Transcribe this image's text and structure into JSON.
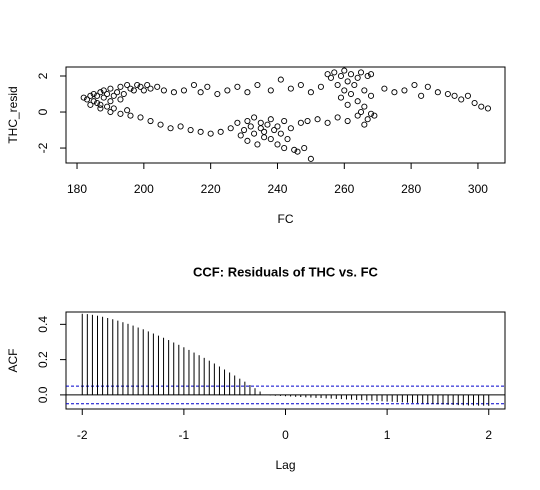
{
  "chart_data": [
    {
      "type": "scatter",
      "xlabel": "FC",
      "ylabel": "THC_resid",
      "color": "#000000",
      "x": [
        182,
        183,
        184,
        185,
        185,
        186,
        186,
        187,
        187,
        188,
        188,
        189,
        189,
        190,
        190,
        191,
        191,
        192,
        193,
        193,
        194,
        195,
        195,
        196,
        197,
        198,
        199,
        200,
        201,
        202,
        204,
        206,
        209,
        212,
        215,
        217,
        219,
        222,
        225,
        228,
        231,
        234,
        238,
        241,
        244,
        247,
        250,
        253,
        256,
        184,
        187,
        190,
        193,
        196,
        199,
        202,
        205,
        208,
        211,
        214,
        217,
        220,
        223,
        226,
        228,
        229,
        230,
        231,
        231,
        232,
        233,
        233,
        234,
        235,
        235,
        236,
        236,
        237,
        238,
        238,
        239,
        240,
        240,
        241,
        242,
        242,
        243,
        244,
        245,
        246,
        247,
        248,
        250,
        249,
        252,
        255,
        258,
        261,
        264,
        266,
        268,
        258,
        259,
        259,
        260,
        260,
        261,
        261,
        262,
        262,
        263,
        264,
        264,
        265,
        265,
        266,
        266,
        267,
        267,
        268,
        268,
        269,
        255,
        257,
        272,
        275,
        278,
        281,
        283,
        285,
        288,
        291,
        293,
        295,
        297,
        299,
        301,
        303
      ],
      "values": [
        0.8,
        0.7,
        0.9,
        0.6,
        1.0,
        0.5,
        0.9,
        1.1,
        0.4,
        0.8,
        1.2,
        0.3,
        1.0,
        0.6,
        1.3,
        0.9,
        0.2,
        1.1,
        0.7,
        1.4,
        1.0,
        0.1,
        1.5,
        1.3,
        1.2,
        1.5,
        1.4,
        1.2,
        1.5,
        1.3,
        1.4,
        1.2,
        1.1,
        1.2,
        1.5,
        1.1,
        1.4,
        1.0,
        1.2,
        1.4,
        1.1,
        1.5,
        1.2,
        1.8,
        1.3,
        1.5,
        1.1,
        1.4,
        1.9,
        0.4,
        0.2,
        0.0,
        -0.1,
        -0.2,
        -0.3,
        -0.5,
        -0.7,
        -0.9,
        -0.8,
        -1.0,
        -1.1,
        -1.2,
        -1.1,
        -0.9,
        -0.6,
        -1.3,
        -1.0,
        -0.5,
        -1.6,
        -0.8,
        -1.2,
        -0.3,
        -1.8,
        -0.9,
        -0.6,
        -1.4,
        -1.1,
        -0.7,
        -1.5,
        -0.4,
        -1.0,
        -1.8,
        -0.8,
        -1.2,
        -2.0,
        -0.5,
        -1.5,
        -0.9,
        -2.1,
        -2.2,
        -0.6,
        -2.0,
        -2.6,
        -0.5,
        -0.4,
        -0.6,
        -0.3,
        -0.5,
        -0.2,
        -0.7,
        -0.1,
        1.5,
        2.0,
        0.8,
        1.2,
        2.3,
        1.7,
        0.4,
        1.0,
        2.1,
        1.5,
        0.6,
        1.9,
        0.0,
        2.2,
        1.2,
        0.3,
        2.0,
        -0.4,
        0.9,
        2.1,
        -0.2,
        2.1,
        2.2,
        1.3,
        1.1,
        1.2,
        1.5,
        0.9,
        1.4,
        1.1,
        1.0,
        0.9,
        0.7,
        0.9,
        0.5,
        0.3,
        0.2
      ],
      "xlim": [
        176.7,
        308.1
      ],
      "ylim": [
        -2.83,
        2.5
      ],
      "xticks": [
        180,
        200,
        220,
        240,
        260,
        280,
        300
      ],
      "yticks": [
        -2,
        0,
        2
      ]
    },
    {
      "type": "stem",
      "title": "CCF: Residuals of THC vs. FC",
      "xlabel": "Lag",
      "ylabel": "ACF",
      "color": "#000000",
      "x": [
        -2,
        -1.95,
        -1.9,
        -1.85,
        -1.8,
        -1.75,
        -1.7,
        -1.65,
        -1.6,
        -1.55,
        -1.5,
        -1.45,
        -1.4,
        -1.35,
        -1.3,
        -1.25,
        -1.2,
        -1.15,
        -1.1,
        -1.05,
        -1,
        -0.95,
        -0.9,
        -0.85,
        -0.8,
        -0.75,
        -0.7,
        -0.65,
        -0.6,
        -0.55,
        -0.5,
        -0.45,
        -0.4,
        -0.35,
        -0.3,
        -0.25,
        -0.2,
        -0.15,
        -0.1,
        -0.05,
        0,
        0.05,
        0.1,
        0.15,
        0.2,
        0.25,
        0.3,
        0.35,
        0.4,
        0.45,
        0.5,
        0.55,
        0.6,
        0.65,
        0.7,
        0.75,
        0.8,
        0.85,
        0.9,
        0.95,
        1,
        1.05,
        1.1,
        1.15,
        1.2,
        1.25,
        1.3,
        1.35,
        1.4,
        1.45,
        1.5,
        1.55,
        1.6,
        1.65,
        1.7,
        1.75,
        1.8,
        1.85,
        1.9,
        1.95,
        2
      ],
      "values": [
        0.46,
        0.458,
        0.454,
        0.449,
        0.443,
        0.436,
        0.429,
        0.421,
        0.412,
        0.403,
        0.393,
        0.382,
        0.372,
        0.36,
        0.348,
        0.336,
        0.324,
        0.311,
        0.297,
        0.284,
        0.27,
        0.255,
        0.24,
        0.225,
        0.21,
        0.194,
        0.178,
        0.161,
        0.144,
        0.127,
        0.11,
        0.092,
        0.075,
        0.056,
        0.038,
        0.019,
        0,
        -0.003,
        -0.005,
        -0.006,
        -0.008,
        -0.009,
        -0.011,
        -0.012,
        -0.014,
        -0.015,
        -0.017,
        -0.018,
        -0.02,
        -0.021,
        -0.023,
        -0.024,
        -0.026,
        -0.027,
        -0.029,
        -0.03,
        -0.032,
        -0.033,
        -0.035,
        -0.036,
        -0.038,
        -0.039,
        -0.041,
        -0.042,
        -0.044,
        -0.045,
        -0.047,
        -0.048,
        -0.05,
        -0.051,
        -0.053,
        -0.054,
        -0.056,
        -0.057,
        -0.058,
        -0.059,
        -0.06,
        -0.06,
        -0.061,
        -0.061,
        -0.062
      ],
      "hlines": [
        0.05,
        -0.05
      ],
      "hline_color": "#0000cc",
      "xlim": [
        -2.16,
        2.16
      ],
      "ylim": [
        -0.08,
        0.47
      ],
      "xticks": [
        -2,
        -1,
        0,
        1,
        2
      ],
      "yticks": [
        {
          "value": 0,
          "label": "0.0"
        },
        {
          "value": 0.2,
          "label": "0.2"
        },
        {
          "value": 0.4,
          "label": "0.4"
        }
      ]
    }
  ]
}
